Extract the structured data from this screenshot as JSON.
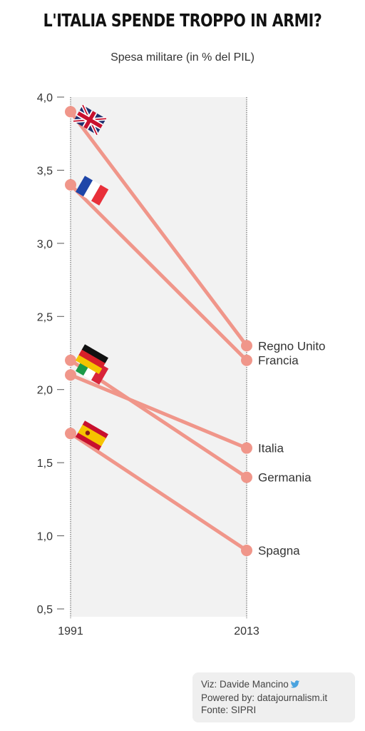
{
  "title": "L'ITALIA SPENDE TROPPO IN ARMI?",
  "subtitle": "Spesa militare (in % del PIL)",
  "chart_data": {
    "type": "line",
    "chart_style": "slopegraph",
    "x": [
      "1991",
      "2013"
    ],
    "ylim": [
      0.5,
      4.0
    ],
    "yticks": [
      4.0,
      3.5,
      3.0,
      2.5,
      2.0,
      1.5,
      1.0,
      0.5
    ],
    "ytick_labels": [
      "4,0",
      "3,5",
      "3,0",
      "2,5",
      "2,0",
      "1,5",
      "1,0",
      "0,5"
    ],
    "grid": false,
    "series": [
      {
        "name": "Regno Unito",
        "values": [
          3.9,
          2.3
        ],
        "flag": "uk-flag-icon"
      },
      {
        "name": "Francia",
        "values": [
          3.4,
          2.2
        ],
        "flag": "france-flag-icon"
      },
      {
        "name": "Germania",
        "values": [
          2.2,
          1.4
        ],
        "flag": "germany-flag-icon"
      },
      {
        "name": "Italia",
        "values": [
          2.1,
          1.6
        ],
        "flag": "italy-flag-icon"
      },
      {
        "name": "Spagna",
        "values": [
          1.7,
          0.9
        ],
        "flag": "spain-flag-icon"
      }
    ],
    "line_color": "#f0968a",
    "band_color": "#f2f2f2"
  },
  "credits": {
    "viz": "Viz: Davide Mancino",
    "powered": "Powered by: datajournalism.it",
    "source": "Fonte: SIPRI",
    "icon": "twitter-bird-icon"
  }
}
